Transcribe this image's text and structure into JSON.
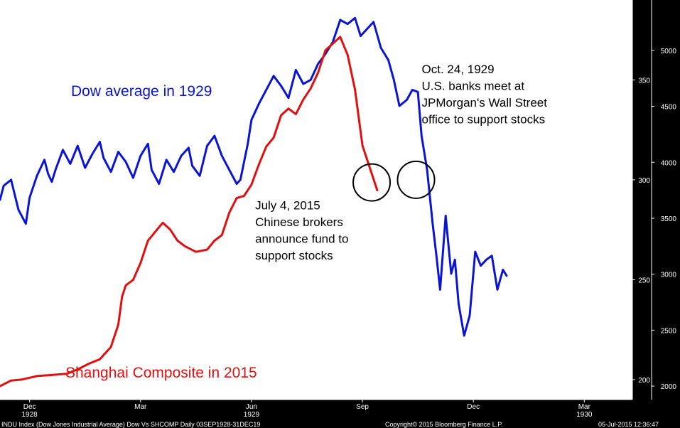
{
  "colors": {
    "dow": "#0a14d2",
    "shanghai": "#e01010",
    "annotation": "#000000",
    "plot_bg": "#ffffff",
    "frame_bg": "#000000",
    "axis_text": "#ffffff"
  },
  "chart_data": {
    "type": "line",
    "title": "",
    "xlabel": "",
    "ylabel": "",
    "x_ticks": [
      {
        "label": "Dec",
        "year": "1928",
        "x": 3
      },
      {
        "label": "Mar",
        "year": "",
        "x": 6
      },
      {
        "label": "Jun",
        "year": "1929",
        "x": 9
      },
      {
        "label": "Sep",
        "year": "",
        "x": 12
      },
      {
        "label": "Dec",
        "year": "",
        "x": 15
      },
      {
        "label": "Mar",
        "year": "1930",
        "x": 18
      }
    ],
    "xlim": [
      2.2,
      19.3
    ],
    "y_inner": {
      "axis": "Dow",
      "ylim": [
        190,
        390
      ],
      "ticks": [
        200,
        250,
        300,
        350
      ]
    },
    "y_outer": {
      "axis": "Shanghai",
      "ylim": [
        1880,
        5450
      ],
      "ticks": [
        2000,
        2500,
        3000,
        3500,
        4000,
        4500,
        5000
      ]
    },
    "series": [
      {
        "name": "Dow average in 1929",
        "axis": "Dow",
        "x": [
          2.2,
          2.3,
          2.5,
          2.7,
          2.9,
          3.0,
          3.2,
          3.4,
          3.5,
          3.6,
          3.7,
          3.9,
          4.1,
          4.3,
          4.5,
          4.7,
          4.9,
          5.0,
          5.2,
          5.4,
          5.6,
          5.8,
          6.0,
          6.2,
          6.3,
          6.5,
          6.7,
          6.9,
          7.1,
          7.3,
          7.4,
          7.6,
          7.8,
          8.0,
          8.2,
          8.4,
          8.6,
          8.7,
          8.9,
          9.0,
          9.2,
          9.4,
          9.6,
          9.8,
          10.0,
          10.2,
          10.4,
          10.6,
          10.8,
          11.0,
          11.2,
          11.4,
          11.6,
          11.8,
          11.95,
          12.1,
          12.3,
          12.5,
          12.7,
          12.85,
          13.0,
          13.2,
          13.35,
          13.5,
          13.6,
          13.75,
          13.9,
          14.0,
          14.1,
          14.25,
          14.4,
          14.5,
          14.6,
          14.75,
          14.9,
          15.05,
          15.2,
          15.35,
          15.5,
          15.65,
          15.8,
          15.9
        ],
        "values": [
          290,
          297,
          300,
          285,
          278,
          291,
          302,
          310,
          303,
          299,
          305,
          315,
          308,
          317,
          306,
          313,
          319,
          311,
          304,
          314,
          309,
          301,
          312,
          318,
          305,
          298,
          310,
          304,
          312,
          316,
          307,
          302,
          317,
          322,
          312,
          305,
          298,
          300,
          318,
          330,
          338,
          345,
          352,
          347,
          341,
          355,
          348,
          350,
          358,
          363,
          369,
          380,
          378,
          381,
          372,
          375,
          379,
          366,
          360,
          350,
          337,
          340,
          345,
          344,
          322,
          305,
          278,
          262,
          245,
          282,
          253,
          260,
          238,
          222,
          232,
          264,
          257,
          260,
          262,
          245,
          255,
          252
        ]
      },
      {
        "name": "Shanghai Composite in 2015",
        "axis": "Shanghai",
        "x": [
          2.2,
          2.5,
          2.8,
          3.2,
          3.6,
          4.0,
          4.3,
          4.6,
          4.9,
          5.2,
          5.4,
          5.5,
          5.6,
          5.8,
          6.0,
          6.2,
          6.4,
          6.6,
          6.8,
          7.0,
          7.2,
          7.5,
          7.8,
          8.0,
          8.2,
          8.4,
          8.6,
          8.8,
          9.0,
          9.2,
          9.4,
          9.6,
          9.8,
          10.0,
          10.2,
          10.4,
          10.6,
          10.8,
          11.0,
          11.2,
          11.4,
          11.6,
          11.8,
          12.0,
          12.2,
          12.4
        ],
        "values": [
          2000,
          2050,
          2060,
          2090,
          2100,
          2110,
          2150,
          2200,
          2240,
          2350,
          2550,
          2800,
          2900,
          2950,
          3100,
          3300,
          3380,
          3460,
          3400,
          3300,
          3250,
          3200,
          3220,
          3300,
          3350,
          3550,
          3680,
          3700,
          3800,
          3980,
          4140,
          4220,
          4420,
          4480,
          4430,
          4560,
          4660,
          4800,
          5000,
          5060,
          5120,
          4960,
          4650,
          4150,
          3950,
          3750
        ]
      }
    ],
    "labels": {
      "dow": "Dow average in 1929",
      "shanghai": "Shanghai Composite in 2015"
    },
    "annotations": [
      {
        "name": "dow",
        "lines": [
          "Oct. 24, 1929",
          "U.S. banks meet at",
          "JPMorgan's Wall Street",
          "office to support stocks"
        ],
        "x": 13.45,
        "y": 300
      },
      {
        "name": "shanghai",
        "lines": [
          "July 4, 2015",
          "Chinese brokers",
          "announce fund to",
          "support stocks"
        ],
        "x": 12.25,
        "y": 3820
      }
    ]
  },
  "footer": {
    "left": "INDU Index (Dow Jones Industrial Average) Dow Vs SHCOMP  Daily 03SEP1928-31DEC19",
    "center": "Copyright© 2015 Bloomberg Finance L.P.",
    "right": "05-Jul-2015 12:36:47"
  }
}
